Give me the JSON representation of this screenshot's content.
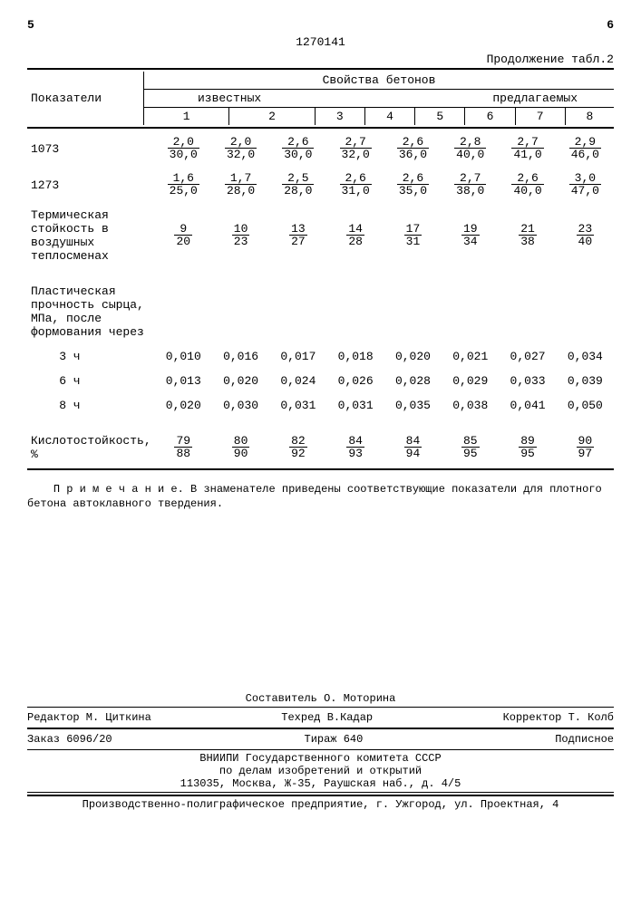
{
  "header": {
    "left_num": "5",
    "doc_number": "1270141",
    "right_num": "6",
    "continuation": "Продолжение табл.2"
  },
  "table": {
    "row_title": "Показатели",
    "group_title": "Свойства бетонов",
    "subgroups": {
      "left": "известных",
      "right": "предлагаемых"
    },
    "cols": [
      "1",
      "2",
      "3",
      "4",
      "5",
      "6",
      "7",
      "8"
    ],
    "rows": [
      {
        "label": "1073",
        "type": "frac",
        "values": [
          [
            "2,0",
            "30,0"
          ],
          [
            "2,0",
            "32,0"
          ],
          [
            "2,6",
            "30,0"
          ],
          [
            "2,7",
            "32,0"
          ],
          [
            "2,6",
            "36,0"
          ],
          [
            "2,8",
            "40,0"
          ],
          [
            "2,7",
            "41,0"
          ],
          [
            "2,9",
            "46,0"
          ]
        ]
      },
      {
        "label": "1273",
        "type": "frac",
        "values": [
          [
            "1,6",
            "25,0"
          ],
          [
            "1,7",
            "28,0"
          ],
          [
            "2,5",
            "28,0"
          ],
          [
            "2,6",
            "31,0"
          ],
          [
            "2,6",
            "35,0"
          ],
          [
            "2,7",
            "38,0"
          ],
          [
            "2,6",
            "40,0"
          ],
          [
            "3,0",
            "47,0"
          ]
        ]
      },
      {
        "label": "Термическая стойкость в воздушных теплосменах",
        "type": "frac",
        "values": [
          [
            "9",
            "20"
          ],
          [
            "10",
            "23"
          ],
          [
            "13",
            "27"
          ],
          [
            "14",
            "28"
          ],
          [
            "17",
            "31"
          ],
          [
            "19",
            "34"
          ],
          [
            "21",
            "38"
          ],
          [
            "23",
            "40"
          ]
        ]
      },
      {
        "label": "Пластическая прочность сырца, МПа, после формования через",
        "type": "header_only"
      },
      {
        "label": "3 ч",
        "type": "plain",
        "values": [
          "0,010",
          "0,016",
          "0,017",
          "0,018",
          "0,020",
          "0,021",
          "0,027",
          "0,034"
        ]
      },
      {
        "label": "6 ч",
        "type": "plain",
        "values": [
          "0,013",
          "0,020",
          "0,024",
          "0,026",
          "0,028",
          "0,029",
          "0,033",
          "0,039"
        ]
      },
      {
        "label": "8 ч",
        "type": "plain",
        "values": [
          "0,020",
          "0,030",
          "0,031",
          "0,031",
          "0,035",
          "0,038",
          "0,041",
          "0,050"
        ]
      },
      {
        "label": "Кислотостойкость, %",
        "type": "frac",
        "values": [
          [
            "79",
            "88"
          ],
          [
            "80",
            "90"
          ],
          [
            "82",
            "92"
          ],
          [
            "84",
            "93"
          ],
          [
            "84",
            "94"
          ],
          [
            "85",
            "95"
          ],
          [
            "89",
            "95"
          ],
          [
            "90",
            "97"
          ]
        ]
      }
    ]
  },
  "note": {
    "prefix": "П р и м е ч а н и е.",
    "text": "В знаменателе приведены соответствующие показатели для плотного бетона автоклавного твердения."
  },
  "footer": {
    "compiler": "Составитель О. Моторина",
    "editor": "Редактор М. Циткина",
    "techred": "Техред В.Кадар",
    "corrector": "Корректор Т. Колб",
    "order": "Заказ 6096/20",
    "tirazh": "Тираж 640",
    "podpisnoe": "Подписное",
    "org1": "ВНИИПИ Государственного комитета СССР",
    "org2": "по делам изобретений и открытий",
    "org3": "113035, Москва, Ж-35, Раушская наб., д. 4/5",
    "press": "Производственно-полиграфическое предприятие, г. Ужгород, ул. Проектная, 4"
  }
}
